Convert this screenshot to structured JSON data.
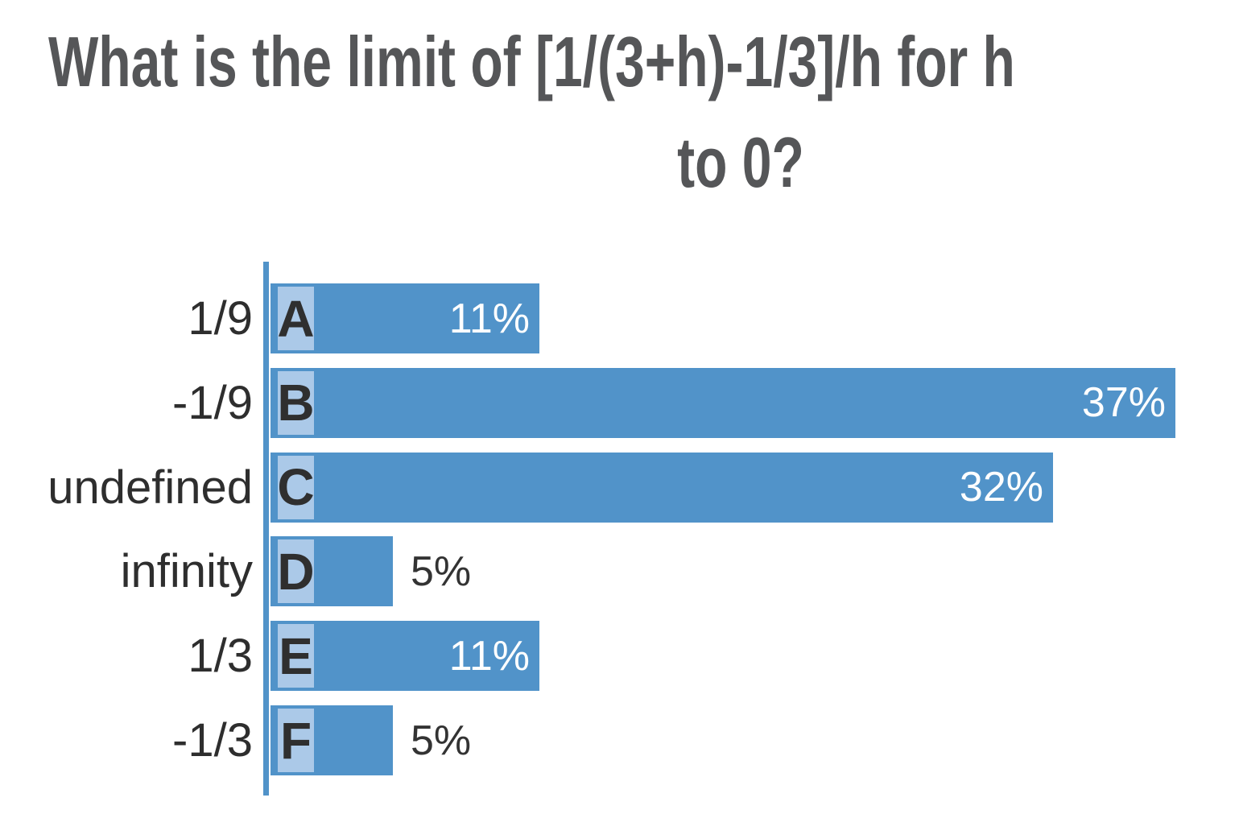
{
  "title": {
    "line1": "What is the limit of [1/(3+h)-1/3]/h for h",
    "line2": "to 0?"
  },
  "colors": {
    "background": "#ffffff",
    "bar": "#5193c9",
    "chip": "#abc9e8",
    "axis": "#5193c9",
    "title_text": "#555658",
    "answer_text": "#2e2e2e",
    "letter_text": "#2f2f2f",
    "pct_inside": "#ffffff",
    "pct_outside": "#333333"
  },
  "bars": [
    {
      "letter": "A",
      "answer": "1/9",
      "value": 11,
      "pct": "11%",
      "label_inside": true
    },
    {
      "letter": "B",
      "answer": "-1/9",
      "value": 37,
      "pct": "37%",
      "label_inside": true
    },
    {
      "letter": "C",
      "answer": "undefined",
      "value": 32,
      "pct": "32%",
      "label_inside": true
    },
    {
      "letter": "D",
      "answer": "infinity",
      "value": 5,
      "pct": "5%",
      "label_inside": false
    },
    {
      "letter": "E",
      "answer": "1/3",
      "value": 11,
      "pct": "11%",
      "label_inside": true
    },
    {
      "letter": "F",
      "answer": "-1/3",
      "value": 5,
      "pct": "5%",
      "label_inside": false
    }
  ],
  "chart_data": {
    "type": "bar",
    "orientation": "horizontal",
    "title_lines": [
      "What is the limit of [1/(3+h)-1/3]/h for h",
      "to 0?"
    ],
    "categories": [
      "1/9",
      "-1/9",
      "undefined",
      "infinity",
      "1/3",
      "-1/3"
    ],
    "choice_letters": [
      "A",
      "B",
      "C",
      "D",
      "E",
      "F"
    ],
    "values": [
      11,
      37,
      32,
      5,
      11,
      5
    ],
    "value_labels": [
      "11%",
      "37%",
      "32%",
      "5%",
      "11%",
      "5%"
    ],
    "unit": "%",
    "xlim": [
      0,
      37
    ],
    "grid": false,
    "legend": false
  }
}
